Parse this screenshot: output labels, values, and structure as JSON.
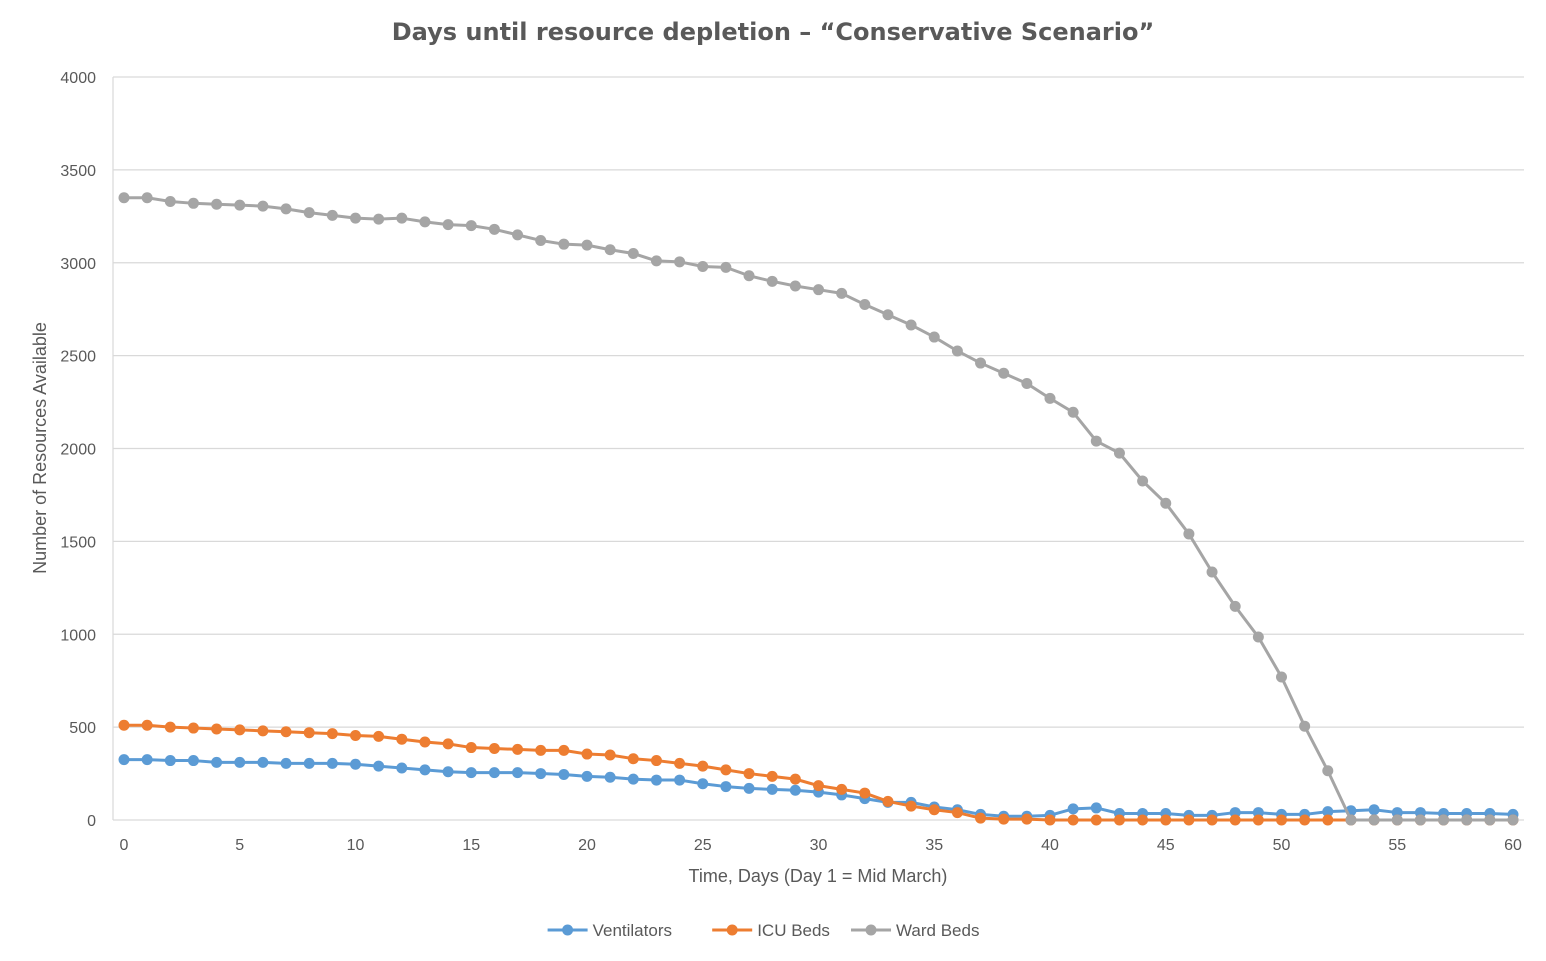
{
  "chart_data": {
    "type": "line",
    "title": "Days until resource depletion – “Conservative Scenario”",
    "xlabel": "Time, Days (Day 1 = Mid March)",
    "ylabel": "Number of Resources Available",
    "xlim": [
      0,
      60
    ],
    "ylim": [
      0,
      4000
    ],
    "xticks": [
      0,
      5,
      10,
      15,
      20,
      25,
      30,
      35,
      40,
      45,
      50,
      55,
      60
    ],
    "yticks": [
      0,
      500,
      1000,
      1500,
      2000,
      2500,
      3000,
      3500,
      4000
    ],
    "grid": "horizontal",
    "legend_position": "bottom",
    "x": [
      0,
      1,
      2,
      3,
      4,
      5,
      6,
      7,
      8,
      9,
      10,
      11,
      12,
      13,
      14,
      15,
      16,
      17,
      18,
      19,
      20,
      21,
      22,
      23,
      24,
      25,
      26,
      27,
      28,
      29,
      30,
      31,
      32,
      33,
      34,
      35,
      36,
      37,
      38,
      39,
      40,
      41,
      42,
      43,
      44,
      45,
      46,
      47,
      48,
      49,
      50,
      51,
      52,
      53,
      54,
      55,
      56,
      57,
      58,
      59,
      60
    ],
    "series": [
      {
        "name": "Ventilators",
        "color": "#5B9BD5",
        "values": [
          325,
          325,
          320,
          320,
          310,
          310,
          310,
          305,
          305,
          305,
          300,
          290,
          280,
          270,
          260,
          255,
          255,
          255,
          250,
          245,
          235,
          230,
          220,
          215,
          215,
          195,
          180,
          170,
          165,
          160,
          150,
          135,
          115,
          95,
          95,
          70,
          55,
          30,
          20,
          20,
          25,
          60,
          65,
          35,
          35,
          35,
          25,
          25,
          40,
          40,
          30,
          30,
          45,
          50,
          55,
          40,
          40,
          35,
          35,
          35,
          30
        ]
      },
      {
        "name": "ICU Beds",
        "color": "#ED7D31",
        "values": [
          510,
          510,
          500,
          495,
          490,
          485,
          480,
          475,
          470,
          465,
          455,
          450,
          435,
          420,
          410,
          390,
          385,
          380,
          375,
          375,
          355,
          350,
          330,
          320,
          305,
          290,
          270,
          250,
          235,
          220,
          185,
          165,
          145,
          100,
          75,
          55,
          40,
          10,
          5,
          5,
          0,
          0,
          0,
          0,
          0,
          0,
          0,
          0,
          0,
          0,
          0,
          0,
          0,
          0,
          0,
          0,
          0,
          0,
          0,
          0,
          0
        ]
      },
      {
        "name": "Ward Beds",
        "color": "#A5A5A5",
        "values": [
          3350,
          3350,
          3330,
          3320,
          3315,
          3310,
          3305,
          3290,
          3270,
          3255,
          3240,
          3235,
          3240,
          3220,
          3205,
          3200,
          3180,
          3150,
          3120,
          3100,
          3095,
          3070,
          3050,
          3010,
          3005,
          2980,
          2975,
          2930,
          2900,
          2875,
          2855,
          2835,
          2775,
          2720,
          2665,
          2600,
          2525,
          2460,
          2405,
          2350,
          2270,
          2195,
          2040,
          1975,
          1825,
          1705,
          1540,
          1335,
          1150,
          985,
          770,
          505,
          265,
          0,
          0,
          0,
          0,
          0,
          0,
          0,
          0
        ]
      }
    ]
  }
}
